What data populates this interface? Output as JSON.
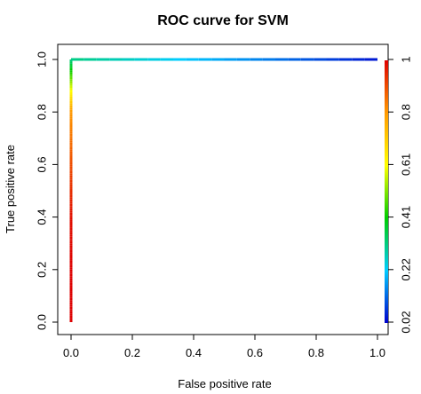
{
  "chart_data": {
    "type": "line",
    "title": "ROC curve for SVM",
    "xlabel": "False positive rate",
    "ylabel": "True positive rate",
    "xlim": [
      0,
      1
    ],
    "ylim": [
      0,
      1
    ],
    "x_ticks": [
      "0.0",
      "0.2",
      "0.4",
      "0.6",
      "0.8",
      "1.0"
    ],
    "y_ticks": [
      "0.0",
      "0.2",
      "0.4",
      "0.6",
      "0.8",
      "1.0"
    ],
    "colorkey": {
      "side": "right",
      "tick_labels": [
        "0.02",
        "0.22",
        "0.41",
        "0.61",
        "0.8",
        "1"
      ],
      "colors_bottom_to_top": [
        "#0000cc",
        "#00ccff",
        "#00cc00",
        "#ffff00",
        "#ff9900",
        "#dd0000"
      ]
    },
    "grid": false,
    "series": [
      {
        "x": [
          0.0,
          0.0,
          0.0,
          0.0,
          0.0,
          0.0,
          1.0
        ],
        "y": [
          0.0,
          0.2,
          0.4,
          0.6,
          0.8,
          1.0,
          1.0
        ],
        "cutoff": [
          1.0,
          1.0,
          0.98,
          0.9,
          0.8,
          0.3,
          0.02
        ]
      }
    ]
  }
}
